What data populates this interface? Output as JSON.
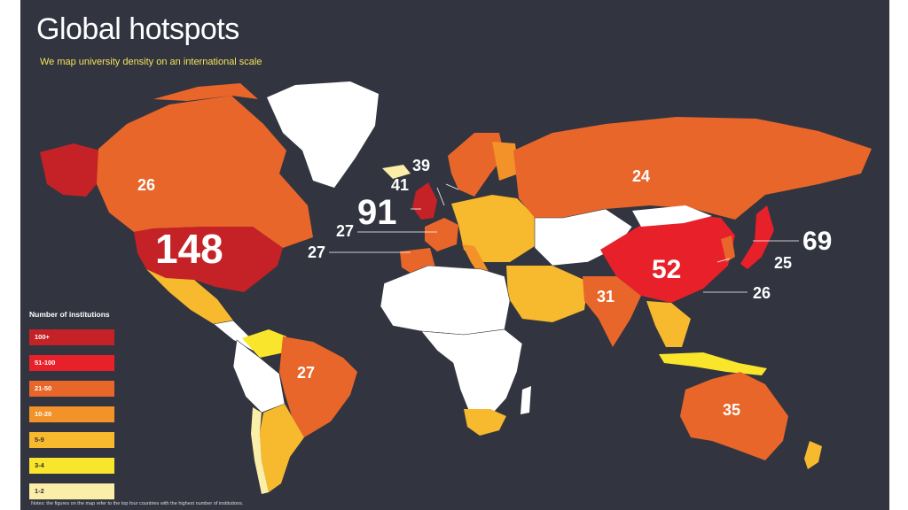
{
  "title": "Global hotspots",
  "subtitle": "We map university density on an international scale",
  "legend": {
    "title": "Number of institutions",
    "items": [
      {
        "label": "100+",
        "color": "#c42226"
      },
      {
        "label": "51-100",
        "color": "#e8202a"
      },
      {
        "label": "21-50",
        "color": "#e8662a"
      },
      {
        "label": "10-20",
        "color": "#f29228"
      },
      {
        "label": "5-9",
        "color": "#f7b92e"
      },
      {
        "label": "3-4",
        "color": "#f9e62c"
      },
      {
        "label": "1-2",
        "color": "#fbeea8"
      }
    ]
  },
  "notes": "Notes: the figures on the map refer to the top four countries with the highest number of institutions.",
  "countries": [
    {
      "name": "United States",
      "value": "148",
      "band": "100+"
    },
    {
      "name": "Canada",
      "value": "26",
      "band": "21-50"
    },
    {
      "name": "United Kingdom",
      "value": "91",
      "band": "51-100"
    },
    {
      "name": "Sweden",
      "value": "39",
      "band": "21-50"
    },
    {
      "name": "Netherlands",
      "value": "41",
      "band": "21-50"
    },
    {
      "name": "France",
      "value": "27",
      "band": "21-50"
    },
    {
      "name": "Spain",
      "value": "27",
      "band": "21-50"
    },
    {
      "name": "Russia",
      "value": "24",
      "band": "21-50"
    },
    {
      "name": "China",
      "value": "52",
      "band": "51-100"
    },
    {
      "name": "Japan",
      "value": "69",
      "band": "51-100"
    },
    {
      "name": "South Korea",
      "value": "25",
      "band": "21-50"
    },
    {
      "name": "Taiwan",
      "value": "26",
      "band": "21-50"
    },
    {
      "name": "India",
      "value": "31",
      "band": "21-50"
    },
    {
      "name": "Brazil",
      "value": "27",
      "band": "21-50"
    },
    {
      "name": "Australia",
      "value": "35",
      "band": "21-50"
    }
  ]
}
